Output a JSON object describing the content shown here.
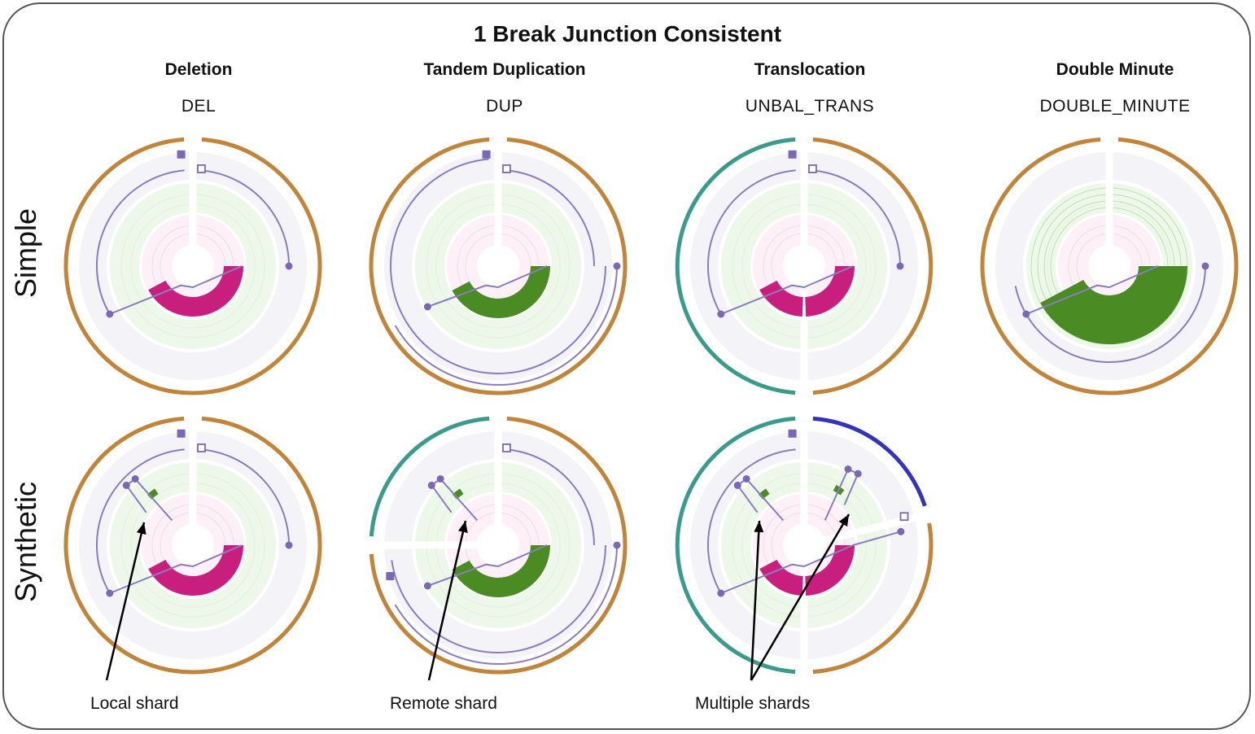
{
  "title": "1 Break Junction Consistent",
  "columns": [
    {
      "heading": "Deletion",
      "type": "DEL"
    },
    {
      "heading": "Tandem Duplication",
      "type": "DUP"
    },
    {
      "heading": "Translocation",
      "type": "UNBAL_TRANS"
    },
    {
      "heading": "Double Minute",
      "type": "DOUBLE_MINUTE"
    }
  ],
  "rows": [
    {
      "label": "Simple"
    },
    {
      "label": "Synthetic"
    }
  ],
  "annotations": [
    {
      "text": "Local shard"
    },
    {
      "text": "Remote shard"
    },
    {
      "text": "Multiple shards"
    }
  ],
  "colors": {
    "chromosome_a": "#c0843a",
    "chromosome_b": "#3a9a8c",
    "chromosome_c": "#3533b8",
    "deletion": "#c81f7e",
    "duplication": "#4a8c23",
    "link": "#8a7cbf",
    "marker": "#7a68b4"
  }
}
